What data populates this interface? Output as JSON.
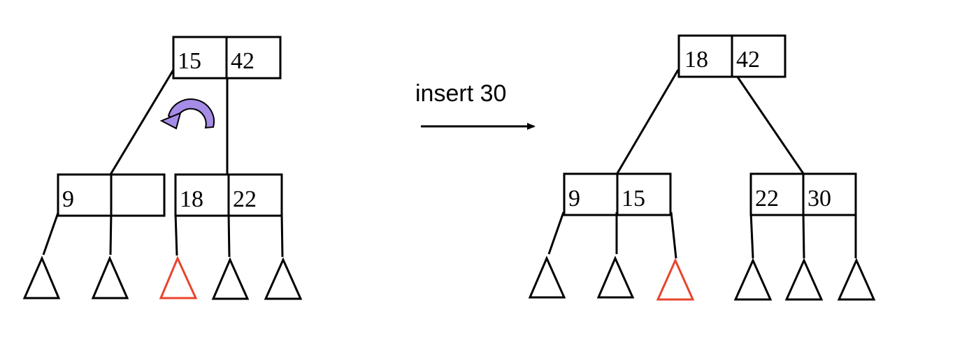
{
  "colors": {
    "ink": "#000000",
    "highlight_subtree": "#e8442e",
    "rotation_arrow": "#a58ce6",
    "background": "#ffffff"
  },
  "operation": {
    "label": "insert 30",
    "arrow_icon": "right-arrow"
  },
  "before": {
    "root": {
      "keys": [
        "15",
        "42"
      ]
    },
    "left_child": {
      "keys": [
        "9",
        ""
      ]
    },
    "right_child": {
      "keys": [
        "18",
        "22"
      ]
    },
    "subtrees": [
      "normal",
      "normal",
      "highlighted",
      "normal",
      "normal"
    ],
    "rotation_icon": "curved-arrow-left"
  },
  "after": {
    "root": {
      "keys": [
        "18",
        "42"
      ]
    },
    "left_child": {
      "keys": [
        "9",
        "15"
      ]
    },
    "right_child": {
      "keys": [
        "22",
        "30"
      ]
    },
    "subtrees": [
      "normal",
      "normal",
      "highlighted",
      "normal",
      "normal",
      "normal"
    ]
  }
}
